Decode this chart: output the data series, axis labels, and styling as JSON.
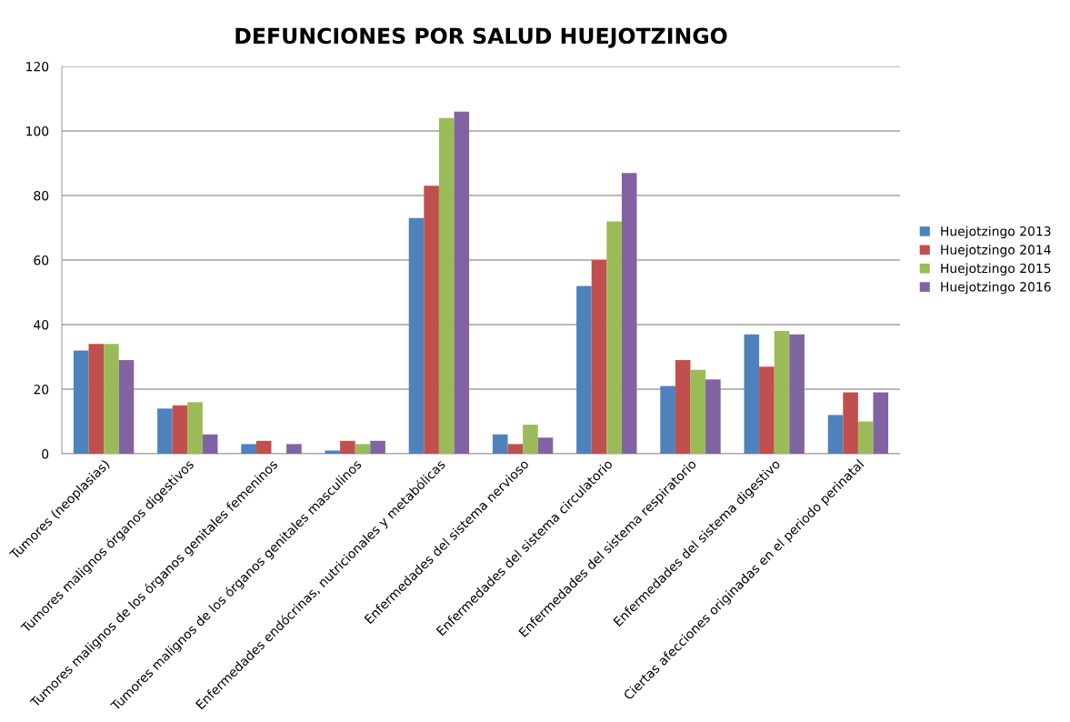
{
  "chart_data": {
    "type": "bar",
    "title": "DEFUNCIONES POR SALUD HUEJOTZINGO",
    "categories": [
      "Tumores (neoplasias)",
      "Tumores malignos órganos digestivos",
      "Tumores malignos de los órganos genitales femeninos",
      "Tumores malignos de los órganos genitales masculinos",
      "Enfermedades endócrinas, nutricionales y metabólicas",
      "Enfermedades del sistema nervioso",
      "Enfermedades del sistema circulatorio",
      "Enfermedades del sistema respiratorio",
      "Enfermedades del sistema digestivo",
      "Ciertas afecciones originadas en el periodo perinatal"
    ],
    "series": [
      {
        "name": "Huejotzingo 2013",
        "color": "#4f81bd",
        "values": [
          32,
          14,
          3,
          1,
          73,
          6,
          52,
          21,
          37,
          12
        ]
      },
      {
        "name": "Huejotzingo 2014",
        "color": "#c0504d",
        "values": [
          34,
          15,
          4,
          4,
          83,
          3,
          60,
          29,
          27,
          19
        ]
      },
      {
        "name": "Huejotzingo 2015",
        "color": "#9bbb59",
        "values": [
          34,
          16,
          0,
          3,
          104,
          9,
          72,
          26,
          38,
          10
        ]
      },
      {
        "name": "Huejotzingo 2016",
        "color": "#8064a2",
        "values": [
          29,
          6,
          3,
          4,
          106,
          5,
          87,
          23,
          37,
          19
        ]
      }
    ],
    "ylim": [
      0,
      120
    ],
    "yticks": [
      0,
      20,
      40,
      60,
      80,
      100,
      120
    ],
    "grid": "y",
    "legend": "right"
  }
}
